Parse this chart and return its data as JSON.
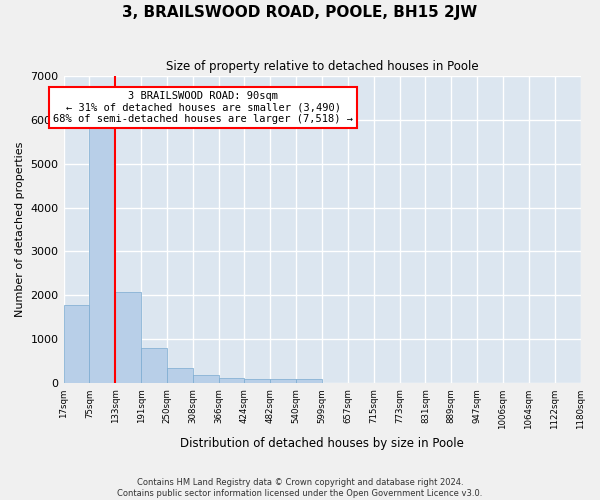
{
  "title": "3, BRAILSWOOD ROAD, POOLE, BH15 2JW",
  "subtitle": "Size of property relative to detached houses in Poole",
  "xlabel": "Distribution of detached houses by size in Poole",
  "ylabel": "Number of detached properties",
  "bar_color": "#b8cfe8",
  "bar_edge_color": "#7aaad0",
  "background_color": "#dce6f0",
  "grid_color": "#ffffff",
  "tick_labels": [
    "17sqm",
    "75sqm",
    "133sqm",
    "191sqm",
    "250sqm",
    "308sqm",
    "366sqm",
    "424sqm",
    "482sqm",
    "540sqm",
    "599sqm",
    "657sqm",
    "715sqm",
    "773sqm",
    "831sqm",
    "889sqm",
    "947sqm",
    "1006sqm",
    "1064sqm",
    "1122sqm",
    "1180sqm"
  ],
  "values": [
    1780,
    5800,
    2080,
    800,
    340,
    200,
    130,
    110,
    100,
    90,
    0,
    0,
    0,
    0,
    0,
    0,
    0,
    0,
    0,
    0
  ],
  "vline_x": 1.5,
  "annotation_text": "3 BRAILSWOOD ROAD: 90sqm\n← 31% of detached houses are smaller (3,490)\n68% of semi-detached houses are larger (7,518) →",
  "ylim": [
    0,
    7000
  ],
  "footer_line1": "Contains HM Land Registry data © Crown copyright and database right 2024.",
  "footer_line2": "Contains public sector information licensed under the Open Government Licence v3.0."
}
